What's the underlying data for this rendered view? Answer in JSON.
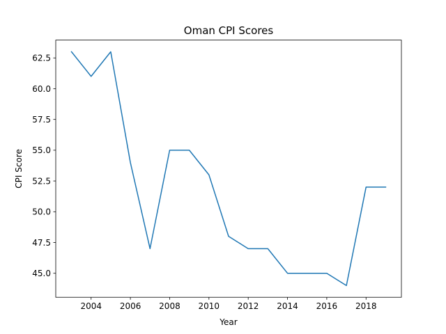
{
  "chart_data": {
    "type": "line",
    "title": "Oman CPI Scores",
    "xlabel": "Year",
    "ylabel": "CPI Score",
    "x": [
      2003,
      2004,
      2005,
      2006,
      2007,
      2008,
      2009,
      2010,
      2011,
      2012,
      2013,
      2014,
      2015,
      2016,
      2017,
      2018,
      2019
    ],
    "series": [
      {
        "values": [
          63,
          61,
          63,
          54,
          47,
          55,
          55,
          53,
          48,
          47,
          47,
          45,
          45,
          45,
          44,
          52,
          52
        ],
        "color": "#1f77b4"
      }
    ],
    "xlim": [
      2002.2,
      2019.8
    ],
    "ylim": [
      43.05,
      63.95
    ],
    "xticks": [
      2004,
      2006,
      2008,
      2010,
      2012,
      2014,
      2016,
      2018
    ],
    "xtick_labels": [
      "2004",
      "2006",
      "2008",
      "2010",
      "2012",
      "2014",
      "2016",
      "2018"
    ],
    "yticks": [
      45.0,
      47.5,
      50.0,
      52.5,
      55.0,
      57.5,
      60.0,
      62.5
    ],
    "ytick_labels": [
      "45.0",
      "47.5",
      "50.0",
      "52.5",
      "55.0",
      "57.5",
      "60.0",
      "62.5"
    ],
    "grid": false,
    "legend": false
  }
}
